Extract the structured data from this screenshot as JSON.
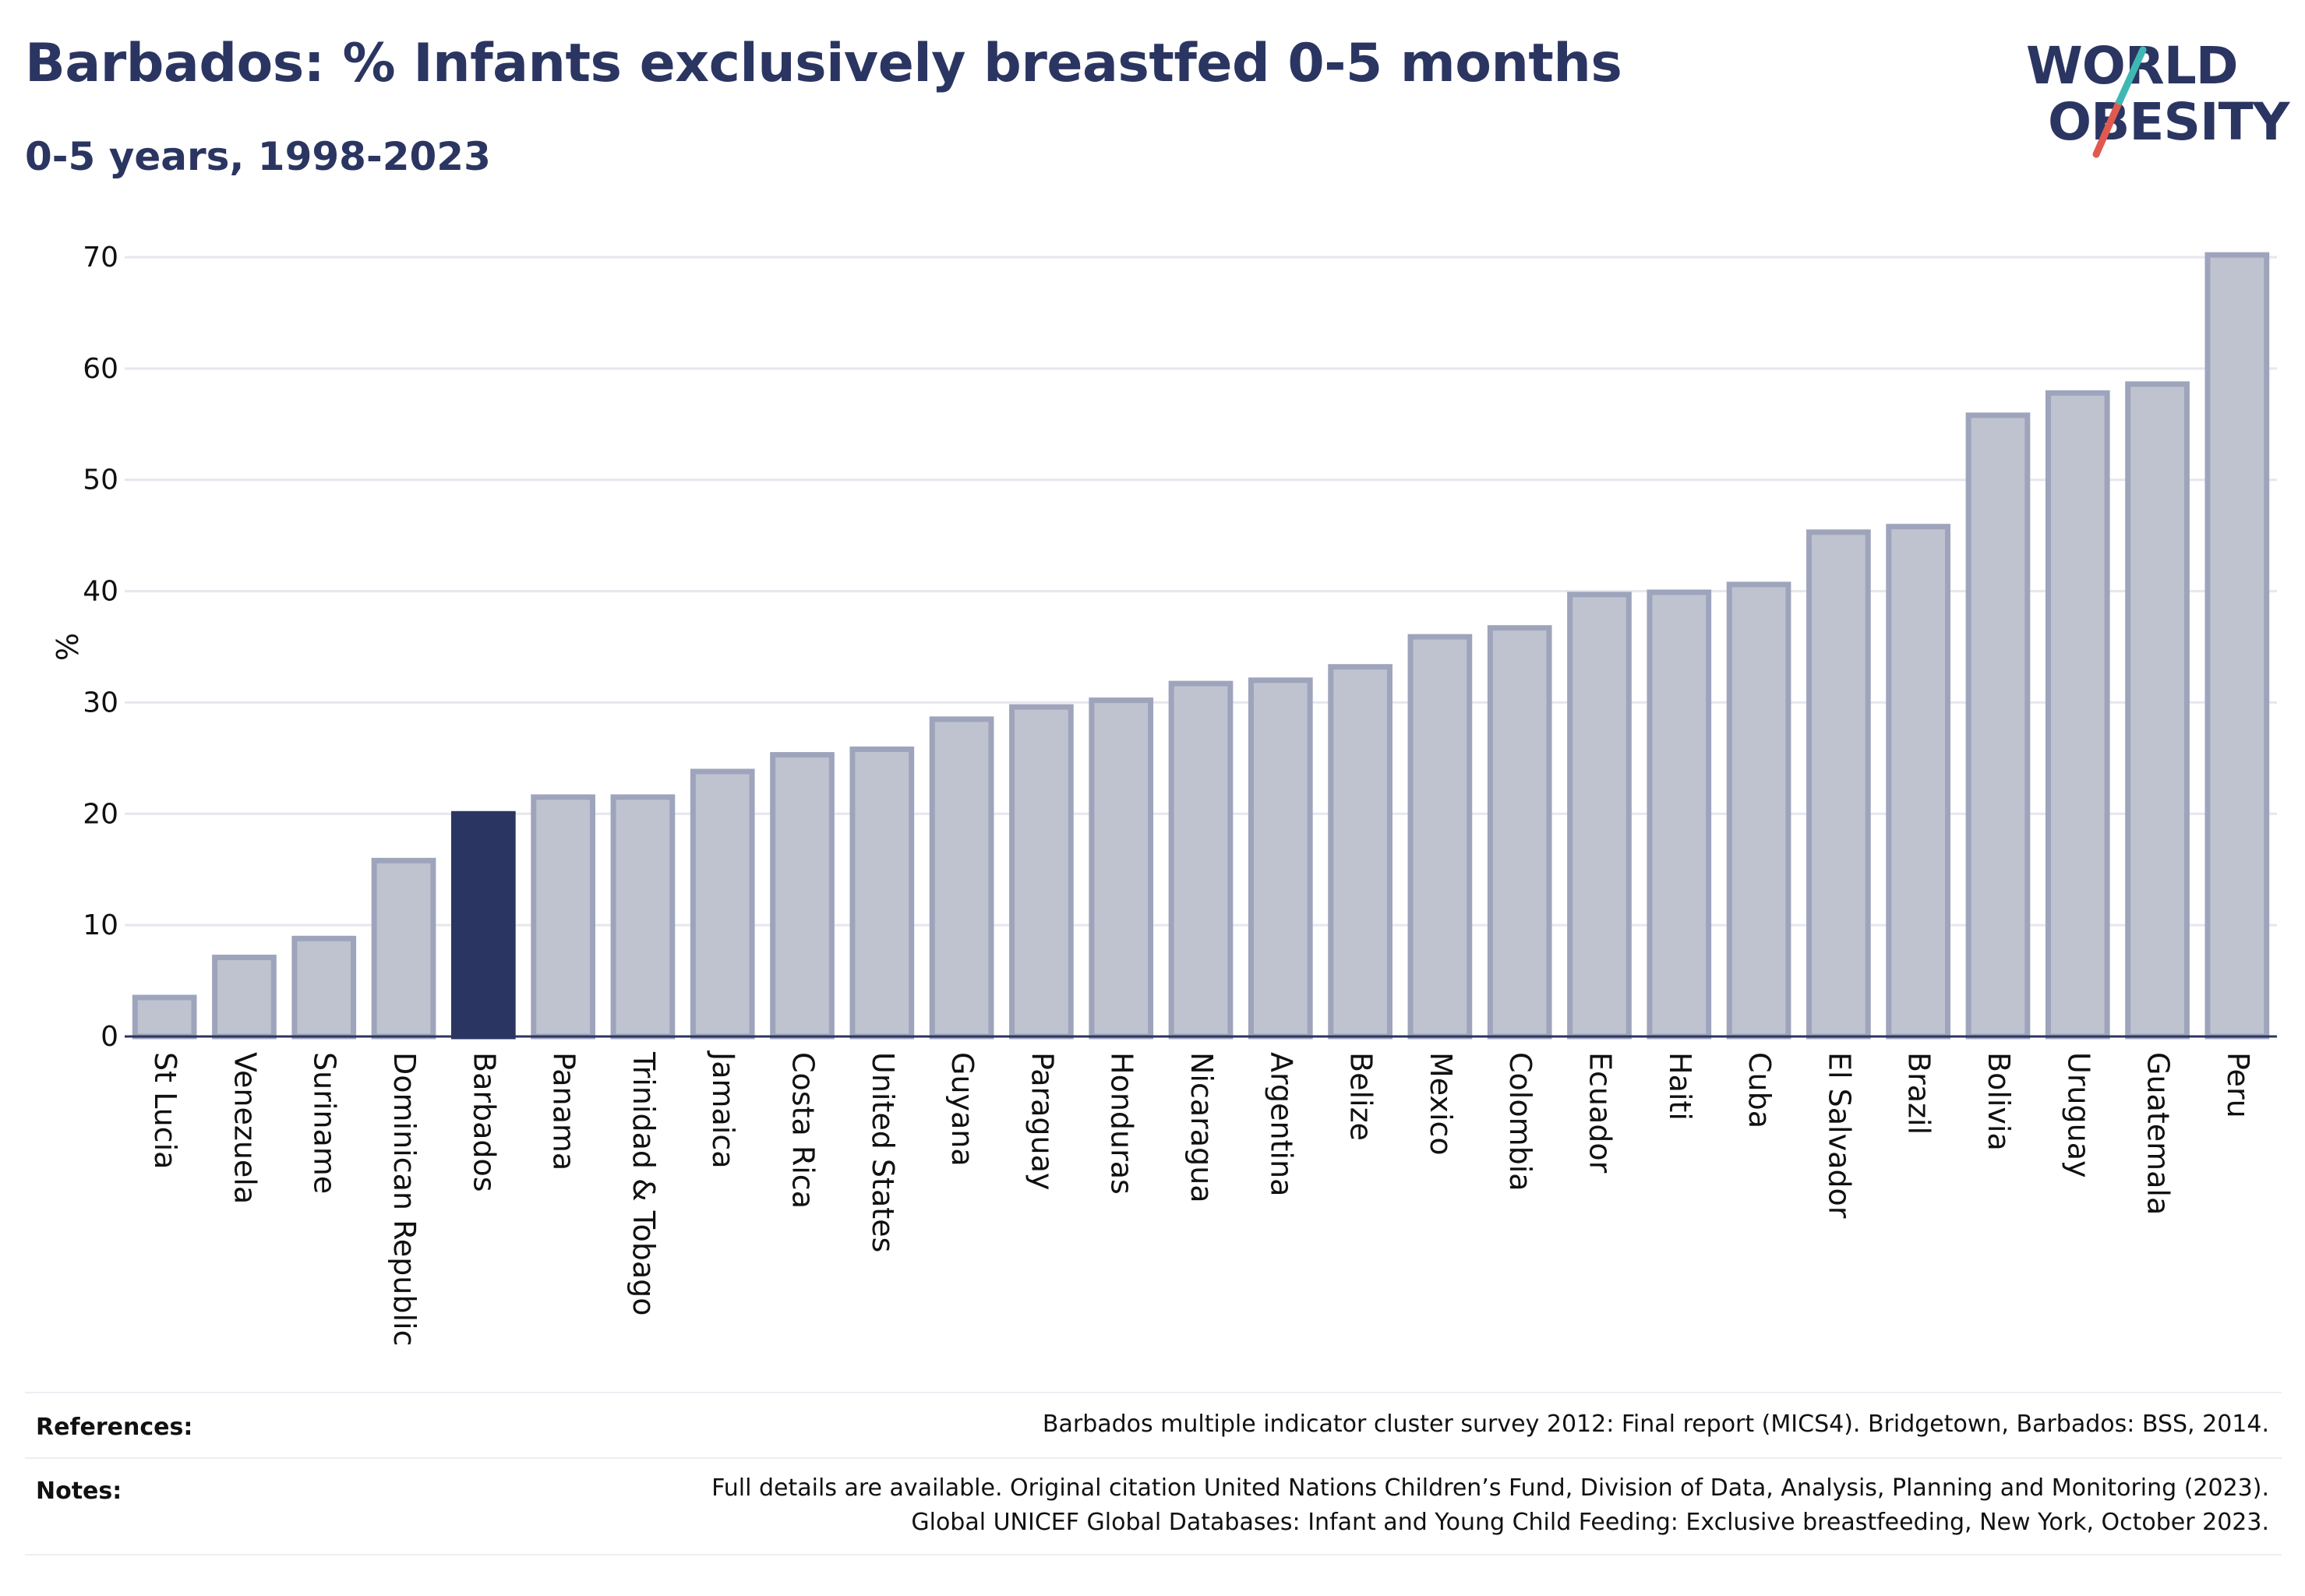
{
  "header": {
    "title": "Barbados: % Infants exclusively breastfed 0-5 months",
    "subtitle": "0-5 years, 1998-2023"
  },
  "logo": {
    "line1": "WORLD",
    "line2": "OBESITY"
  },
  "colors": {
    "highlight": "#2b3561",
    "bar_fill": "#bfc3d0",
    "bar_stroke": "#9ea4bb",
    "grid": "#e6e7ee",
    "accent_teal": "#3fb8b4",
    "accent_red": "#e05a4f"
  },
  "chart_data": {
    "type": "bar",
    "ylabel": "%",
    "ylim": [
      0,
      70
    ],
    "yticks": [
      0,
      10,
      20,
      30,
      40,
      50,
      60,
      70
    ],
    "grid": true,
    "highlight": "Barbados",
    "categories": [
      "St Lucia",
      "Venezuela",
      "Suriname",
      "Dominican Republic",
      "Barbados",
      "Panama",
      "Trinidad & Tobago",
      "Jamaica",
      "Costa Rica",
      "United States",
      "Guyana",
      "Paraguay",
      "Honduras",
      "Nicaragua",
      "Argentina",
      "Belize",
      "Mexico",
      "Colombia",
      "Ecuador",
      "Haiti",
      "Cuba",
      "El Salvador",
      "Brazil",
      "Bolivia",
      "Uruguay",
      "Guatemala",
      "Peru"
    ],
    "values": [
      3.5,
      7.1,
      8.8,
      15.8,
      20.0,
      21.5,
      21.5,
      23.8,
      25.3,
      25.8,
      28.5,
      29.6,
      30.2,
      31.7,
      32.0,
      33.2,
      35.9,
      36.7,
      39.7,
      39.9,
      40.6,
      45.3,
      45.8,
      55.8,
      57.8,
      58.6,
      70.2
    ]
  },
  "footer": {
    "references_label": "References:",
    "references_text": "Barbados multiple indicator cluster survey 2012: Final report (MICS4). Bridgetown, Barbados: BSS, 2014.",
    "notes_label": "Notes:",
    "notes_line1": "Full details are available. Original citation United Nations Children’s Fund, Division of Data, Analysis, Planning and Monitoring (2023).",
    "notes_line2": "Global UNICEF Global Databases: Infant and Young Child Feeding: Exclusive breastfeeding, New York, October 2023."
  }
}
